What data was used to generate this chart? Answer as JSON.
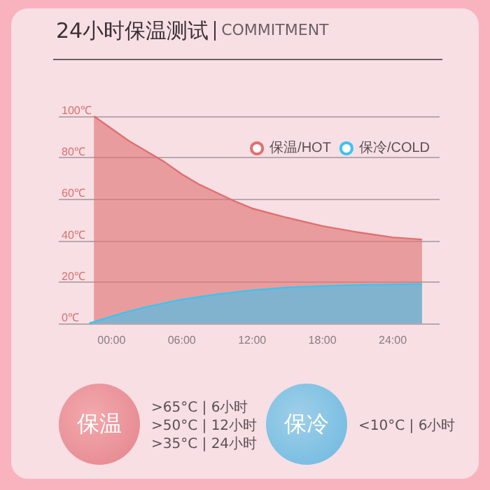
{
  "chart_data": {
    "type": "area",
    "title": "24小时保温测试",
    "subtitle": "COMMITMENT",
    "xlim": [
      -4.5,
      28
    ],
    "xticks": [
      {
        "value": 0,
        "label": "00:00"
      },
      {
        "value": 6,
        "label": "06:00"
      },
      {
        "value": 12,
        "label": "12:00"
      },
      {
        "value": 18,
        "label": "18:00"
      },
      {
        "value": 24,
        "label": "24:00"
      }
    ],
    "ylim": [
      0,
      100
    ],
    "yticks": [
      {
        "value": 0,
        "label": "0℃"
      },
      {
        "value": 20,
        "label": "20℃"
      },
      {
        "value": 40,
        "label": "40℃"
      },
      {
        "value": 60,
        "label": "60℃"
      },
      {
        "value": 80,
        "label": "80℃"
      },
      {
        "value": 100,
        "label": "100℃"
      }
    ],
    "series": [
      {
        "name": "保温/HOT",
        "color": "#e07070",
        "x": [
          -1.5,
          0,
          1.5,
          3,
          4.5,
          6,
          7.5,
          9,
          10.5,
          12,
          15,
          18,
          21,
          24,
          26.5
        ],
        "values": [
          100,
          94,
          88,
          83,
          78,
          72,
          67,
          63,
          59,
          55.5,
          51,
          47,
          44,
          41.5,
          40.5
        ]
      },
      {
        "name": "保冷/COLD",
        "color": "#3ec3ee",
        "x": [
          -1.9,
          -0.5,
          1,
          3,
          6,
          9,
          12,
          15,
          18,
          21,
          24,
          26.5
        ],
        "values": [
          0,
          2.5,
          5,
          8,
          11.5,
          14,
          16,
          17.3,
          18,
          18.5,
          18.8,
          19
        ]
      }
    ],
    "marker": "none",
    "grid": "y",
    "legend": "top right",
    "annotations": [
      "保温",
      ">65°C | 6小时",
      ">50°C | 12小时",
      ">35°C | 24小时",
      "保冷",
      "<10°C | 6小时"
    ]
  }
}
